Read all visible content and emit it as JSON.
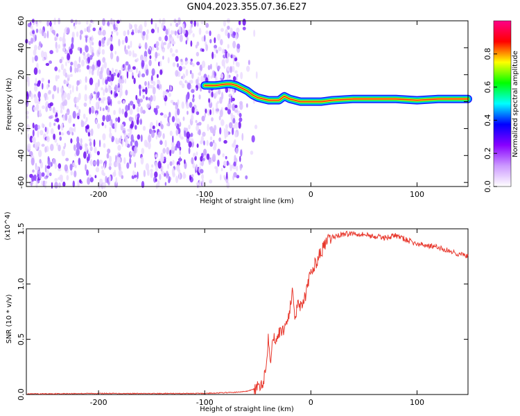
{
  "title": "GN04.2023.355.07.36.E27",
  "chart_data": [
    {
      "type": "heatmap",
      "title": "GN04.2023.355.07.36.E27",
      "xlabel": "Height of straight line (km)",
      "ylabel": "Frequency (Hz)",
      "xlim": [
        -268,
        148
      ],
      "ylim": [
        -63,
        60
      ],
      "x_ticks": [
        -200,
        -100,
        0,
        100
      ],
      "y_ticks": [
        60,
        40,
        20,
        0,
        -20,
        -40,
        -60
      ],
      "colorbar": {
        "label": "Normalized spectral amplitude",
        "range": [
          0,
          1
        ],
        "ticks": [
          "0.0",
          "0.2",
          "0.4",
          "0.6",
          "0.8"
        ],
        "colors": [
          "#ffffff",
          "#cc99ff",
          "#8800ff",
          "#0000ff",
          "#00ffff",
          "#00ff00",
          "#ffff00",
          "#ff0000",
          "#ff0088"
        ]
      },
      "noise_region": {
        "x_range": [
          -268,
          -65
        ],
        "freq_range": [
          -63,
          60
        ]
      },
      "signal_ridge": {
        "x": [
          -100,
          -90,
          -80,
          -75,
          -70,
          -65,
          -60,
          -55,
          -50,
          -40,
          -30,
          -25,
          -20,
          -10,
          0,
          10,
          20,
          40,
          60,
          80,
          100,
          120,
          148
        ],
        "freq": [
          12,
          12,
          13,
          13,
          12,
          10,
          8,
          5,
          3,
          1,
          1,
          4,
          2,
          0,
          0,
          0,
          1,
          2,
          2,
          2,
          1,
          2,
          2
        ]
      }
    },
    {
      "type": "line",
      "xlabel": "Height of straight line (km)",
      "ylabel": "SNR (10 * v/v)",
      "y_multiplier": "(x10^4)",
      "xlim": [
        -268,
        148
      ],
      "ylim": [
        0,
        1.5
      ],
      "x_ticks": [
        -200,
        -100,
        0,
        100
      ],
      "y_ticks": [
        "0.0",
        "0.5",
        "1.0",
        "1.5"
      ],
      "color": "#e8392e",
      "series": [
        {
          "name": "SNR",
          "x": [
            -268,
            -200,
            -150,
            -100,
            -70,
            -60,
            -50,
            -45,
            -42,
            -40,
            -38,
            -37,
            -35,
            -30,
            -25,
            -20,
            -17,
            -15,
            -12,
            -10,
            -5,
            0,
            5,
            10,
            15,
            20,
            25,
            30,
            40,
            50,
            60,
            70,
            80,
            90,
            100,
            110,
            120,
            130,
            140,
            148
          ],
          "y": [
            0.005,
            0.01,
            0.008,
            0.01,
            0.02,
            0.03,
            0.06,
            0.12,
            0.25,
            0.55,
            0.3,
            0.45,
            0.5,
            0.55,
            0.6,
            0.75,
            0.95,
            0.7,
            0.85,
            0.8,
            0.9,
            1.1,
            1.2,
            1.3,
            1.38,
            1.42,
            1.44,
            1.45,
            1.46,
            1.45,
            1.43,
            1.42,
            1.44,
            1.4,
            1.36,
            1.35,
            1.33,
            1.3,
            1.27,
            1.25
          ]
        }
      ]
    }
  ]
}
